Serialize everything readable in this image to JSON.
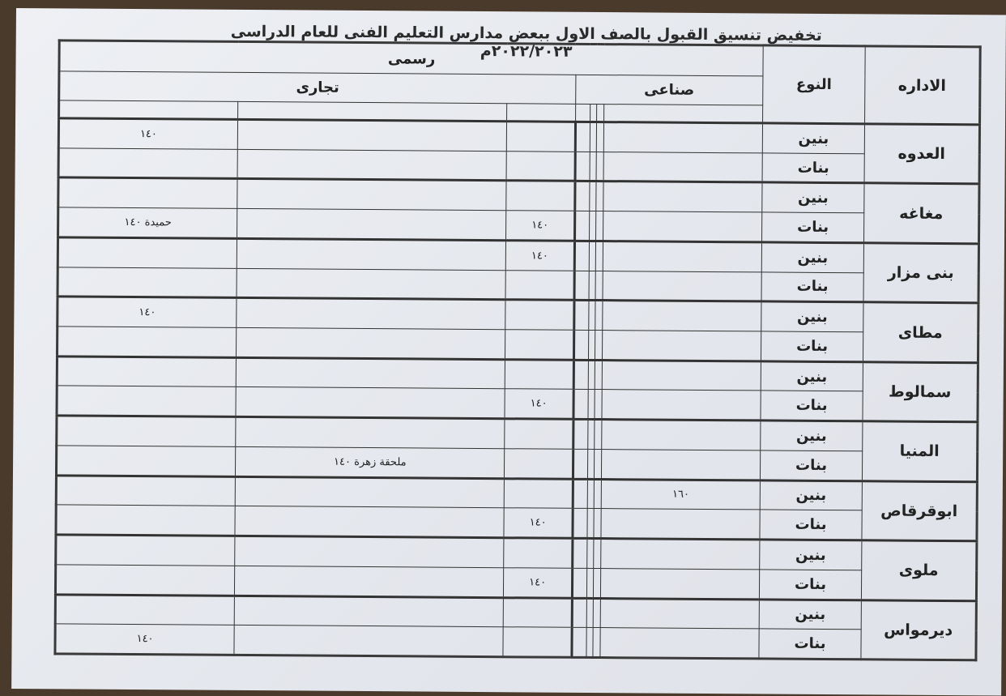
{
  "title": "تخفيض تنسيق القبول بالصف الاول ببعض مدارس التعليم الفنى للعام الدراسى ٢٠٢٢/٢٠٢٣م",
  "headers": {
    "idara": "الاداره",
    "type": "النوع",
    "official": "رسمى",
    "industrial": "صناعى",
    "commercial": "تجارى"
  },
  "genders": {
    "boys": "بنين",
    "girls": "بنات"
  },
  "column_groups": {
    "industrial_columns": 4,
    "commercial_columns": 3
  },
  "rows": [
    {
      "idara": "العدوه",
      "boys": [
        "",
        "",
        "",
        "",
        "",
        "",
        "١٤٠"
      ],
      "girls": [
        "",
        "",
        "",
        "",
        "",
        "",
        ""
      ]
    },
    {
      "idara": "مغاغه",
      "boys": [
        "",
        "",
        "",
        "",
        "",
        "",
        ""
      ],
      "girls": [
        "",
        "",
        "",
        "",
        "١٤٠",
        "",
        "حميدة ١٤٠"
      ]
    },
    {
      "idara": "بنى مزار",
      "boys": [
        "",
        "",
        "",
        "",
        "١٤٠",
        "",
        ""
      ],
      "girls": [
        "",
        "",
        "",
        "",
        "",
        "",
        ""
      ]
    },
    {
      "idara": "مطاى",
      "boys": [
        "",
        "",
        "",
        "",
        "",
        "",
        "١٤٠"
      ],
      "girls": [
        "",
        "",
        "",
        "",
        "",
        "",
        ""
      ]
    },
    {
      "idara": "سمالوط",
      "boys": [
        "",
        "",
        "",
        "",
        "",
        "",
        ""
      ],
      "girls": [
        "",
        "",
        "",
        "",
        "١٤٠",
        "",
        ""
      ]
    },
    {
      "idara": "المنيا",
      "boys": [
        "",
        "",
        "",
        "",
        "",
        "",
        ""
      ],
      "girls": [
        "",
        "",
        "",
        "",
        "",
        "ملحقة زهرة ١٤٠",
        ""
      ]
    },
    {
      "idara": "ابوقرقاص",
      "boys": [
        "١٦٠",
        "",
        "",
        "",
        "",
        "",
        ""
      ],
      "girls": [
        "",
        "",
        "",
        "",
        "١٤٠",
        "",
        ""
      ]
    },
    {
      "idara": "ملوى",
      "boys": [
        "",
        "",
        "",
        "",
        "",
        "",
        ""
      ],
      "girls": [
        "",
        "",
        "",
        "",
        "١٤٠",
        "",
        ""
      ]
    },
    {
      "idara": "ديرمواس",
      "boys": [
        "",
        "",
        "",
        "",
        "",
        "",
        ""
      ],
      "girls": [
        "",
        "",
        "",
        "",
        "",
        "",
        "١٤٠"
      ]
    }
  ]
}
